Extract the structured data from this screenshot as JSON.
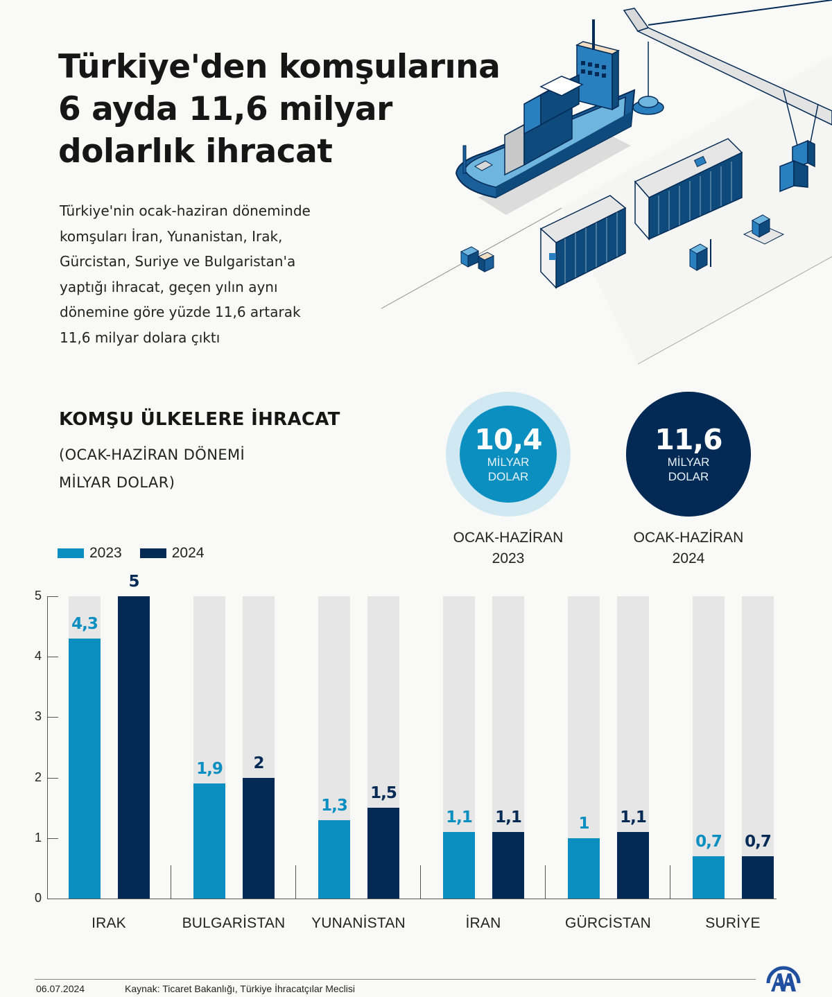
{
  "header": {
    "title_lines": [
      "Türkiye'den komşularına",
      "6 ayda 11,6 milyar",
      "dolarlık ihracat"
    ],
    "intro_lines": [
      "Türkiye'nin ocak-haziran döneminde",
      "komşuları İran, Yunanistan, Irak,",
      "Gürcistan, Suriye ve Bulgaristan'a",
      "yaptığı ihracat, geçen yılın aynı",
      "dönemine göre yüzde 11,6 artarak",
      "11,6 milyar dolara çıktı"
    ]
  },
  "illustration": {
    "icon": "port-ship-container-crane-illustration"
  },
  "chart_header": {
    "title": "KOMŞU ÜLKELERE İHRACAT",
    "subtitle_lines": [
      "(OCAK-HAZİRAN DÖNEMİ",
      "MİLYAR DOLAR)"
    ]
  },
  "legend": [
    {
      "label": "2023",
      "color": "#0a8fc0"
    },
    {
      "label": "2024",
      "color": "#032a55"
    }
  ],
  "summary": [
    {
      "value": "10,4",
      "unit_line1": "MİLYAR",
      "unit_line2": "DOLAR",
      "caption_line1": "OCAK-HAZİRAN",
      "caption_line2": "2023",
      "inner_color": "#0a8fc0",
      "outer_color": "#cfe8f2"
    },
    {
      "value": "11,6",
      "unit_line1": "MİLYAR",
      "unit_line2": "DOLAR",
      "caption_line1": "OCAK-HAZİRAN",
      "caption_line2": "2024",
      "inner_color": "#032a55",
      "outer_color": "#032a55"
    }
  ],
  "chart_data": {
    "type": "bar",
    "title": "KOMŞU ÜLKELERE İHRACAT",
    "subtitle": "(OCAK-HAZİRAN DÖNEMİ MİLYAR DOLAR)",
    "xlabel": "",
    "ylabel": "Milyar dolar",
    "ylim": [
      0,
      5
    ],
    "yticks": [
      "0",
      "1",
      "2",
      "3",
      "4",
      "5"
    ],
    "grid": false,
    "legend_position": "top-left",
    "categories": [
      "IRAK",
      "BULGARİSTAN",
      "YUNANİSTAN",
      "İRAN",
      "GÜRCİSTAN",
      "SURİYE"
    ],
    "series": [
      {
        "name": "2023",
        "color": "#0a8fc0",
        "values": [
          4.3,
          1.9,
          1.3,
          1.1,
          1.0,
          0.7
        ],
        "labels": [
          "4,3",
          "1,9",
          "1,3",
          "1,1",
          "1",
          "0,7"
        ]
      },
      {
        "name": "2024",
        "color": "#032a55",
        "values": [
          5.0,
          2.0,
          1.5,
          1.1,
          1.1,
          0.7
        ],
        "labels": [
          "5",
          "2",
          "1,5",
          "1,1",
          "1,1",
          "0,7"
        ]
      }
    ]
  },
  "footer": {
    "date": "06.07.2024",
    "source": "Kaynak:  Ticaret Bakanlığı, Türkiye İhracatçılar Meclisi",
    "logo": "AA"
  }
}
